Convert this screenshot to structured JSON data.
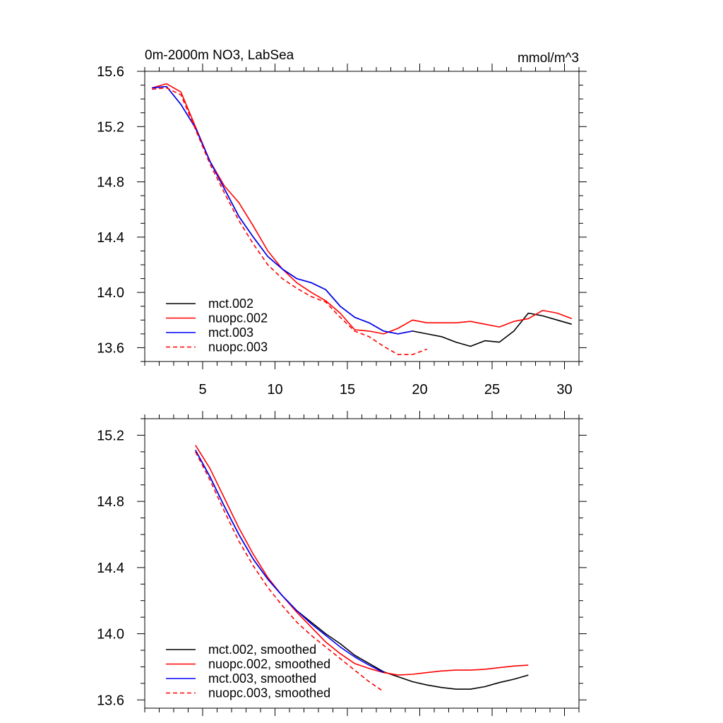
{
  "chart_data": [
    {
      "type": "line",
      "title": "0m-2000m NO3, LabSea",
      "units": "mmol/m^3",
      "xlim": [
        1,
        31
      ],
      "ylim": [
        13.5,
        15.6
      ],
      "xticks": [
        5,
        10,
        15,
        20,
        25,
        30
      ],
      "yticks": [
        13.6,
        14.0,
        14.4,
        14.8,
        15.2,
        15.6
      ],
      "legend_position": "bottom-left",
      "series": [
        {
          "name": "mct.002",
          "color": "#000000",
          "dash": "solid",
          "x": [
            1.5,
            2.5,
            3.5,
            4.5,
            5.5,
            6.5,
            7.5,
            8.5,
            9.5,
            10.5,
            11.5,
            12.5,
            13.5,
            14.5,
            15.5,
            16.5,
            17.5,
            18.5,
            19.5,
            20.5,
            21.5,
            22.5,
            23.5,
            24.5,
            25.5,
            26.5,
            27.5,
            28.5,
            29.5,
            30.5
          ],
          "y": [
            15.48,
            15.49,
            15.36,
            15.19,
            14.95,
            14.75,
            14.55,
            14.4,
            14.26,
            14.17,
            14.1,
            14.07,
            14.02,
            13.9,
            13.82,
            13.78,
            13.72,
            13.7,
            13.72,
            13.7,
            13.68,
            13.64,
            13.61,
            13.65,
            13.64,
            13.72,
            13.85,
            13.83,
            13.8,
            13.77
          ]
        },
        {
          "name": "nuopc.002",
          "color": "#ff0000",
          "dash": "solid",
          "x": [
            1.5,
            2.5,
            3.5,
            4.5,
            5.5,
            6.5,
            7.5,
            8.5,
            9.5,
            10.5,
            11.5,
            12.5,
            13.5,
            14.5,
            15.5,
            16.5,
            17.5,
            18.5,
            19.5,
            20.5,
            21.5,
            22.5,
            23.5,
            24.5,
            25.5,
            26.5,
            27.5,
            28.5,
            29.5,
            30.5
          ],
          "y": [
            15.48,
            15.51,
            15.45,
            15.2,
            14.95,
            14.77,
            14.65,
            14.48,
            14.3,
            14.17,
            14.07,
            14.0,
            13.94,
            13.85,
            13.73,
            13.72,
            13.7,
            13.74,
            13.8,
            13.78,
            13.78,
            13.78,
            13.79,
            13.77,
            13.75,
            13.79,
            13.81,
            13.87,
            13.85,
            13.81
          ]
        },
        {
          "name": "mct.003",
          "color": "#0000ff",
          "dash": "solid",
          "x": [
            1.5,
            2.5,
            3.5,
            4.5,
            5.5,
            6.5,
            7.5,
            8.5,
            9.5,
            10.5,
            11.5,
            12.5,
            13.5,
            14.5,
            15.5,
            16.5,
            17.5,
            18.5,
            19.5
          ],
          "y": [
            15.48,
            15.49,
            15.36,
            15.19,
            14.95,
            14.75,
            14.55,
            14.4,
            14.26,
            14.17,
            14.1,
            14.07,
            14.02,
            13.9,
            13.82,
            13.78,
            13.72,
            13.7,
            13.72
          ]
        },
        {
          "name": "nuopc.003",
          "color": "#ff0000",
          "dash": "dashed",
          "x": [
            1.5,
            2.5,
            3.5,
            4.5,
            5.5,
            6.5,
            7.5,
            8.5,
            9.5,
            10.5,
            11.5,
            12.5,
            13.5,
            14.5,
            15.5,
            16.5,
            17.5,
            18.5,
            19.5,
            20.5
          ],
          "y": [
            15.47,
            15.48,
            15.43,
            15.18,
            14.93,
            14.72,
            14.52,
            14.35,
            14.2,
            14.1,
            14.03,
            13.97,
            13.93,
            13.82,
            13.72,
            13.68,
            13.61,
            13.55,
            13.55,
            13.59
          ]
        }
      ]
    },
    {
      "type": "line",
      "xlim": [
        1,
        31
      ],
      "ylim": [
        13.55,
        15.3
      ],
      "xticks": [
        5,
        10,
        15,
        20,
        25,
        30
      ],
      "yticks": [
        13.6,
        14.0,
        14.4,
        14.8,
        15.2
      ],
      "legend_position": "bottom-left",
      "series": [
        {
          "name": "mct.002, smoothed",
          "color": "#000000",
          "dash": "solid",
          "x": [
            4.5,
            5.5,
            6.5,
            7.5,
            8.5,
            9.5,
            10.5,
            11.5,
            12.5,
            13.5,
            14.5,
            15.5,
            16.5,
            17.5,
            18.5,
            19.5,
            20.5,
            21.5,
            22.5,
            23.5,
            24.5,
            25.5,
            26.5,
            27.5
          ],
          "y": [
            15.11,
            14.95,
            14.77,
            14.6,
            14.45,
            14.33,
            14.23,
            14.14,
            14.07,
            14.0,
            13.94,
            13.87,
            13.82,
            13.77,
            13.74,
            13.71,
            13.69,
            13.675,
            13.665,
            13.665,
            13.68,
            13.705,
            13.725,
            13.75
          ]
        },
        {
          "name": "nuopc.002, smoothed",
          "color": "#ff0000",
          "dash": "solid",
          "x": [
            4.5,
            5.5,
            6.5,
            7.5,
            8.5,
            9.5,
            10.5,
            11.5,
            12.5,
            13.5,
            14.5,
            15.5,
            16.5,
            17.5,
            18.5,
            19.5,
            20.5,
            21.5,
            22.5,
            23.5,
            24.5,
            25.5,
            26.5,
            27.5
          ],
          "y": [
            15.14,
            15.0,
            14.82,
            14.64,
            14.48,
            14.34,
            14.23,
            14.13,
            14.04,
            13.95,
            13.88,
            13.82,
            13.79,
            13.765,
            13.75,
            13.755,
            13.765,
            13.775,
            13.78,
            13.78,
            13.785,
            13.795,
            13.805,
            13.81
          ]
        },
        {
          "name": "mct.003, smoothed",
          "color": "#0000ff",
          "dash": "solid",
          "x": [
            4.5,
            5.5,
            6.5,
            7.5,
            8.5,
            9.5,
            10.5,
            11.5,
            12.5,
            13.5,
            14.5,
            15.5,
            16.5,
            17.5
          ],
          "y": [
            15.11,
            14.95,
            14.77,
            14.6,
            14.45,
            14.33,
            14.23,
            14.14,
            14.06,
            13.99,
            13.92,
            13.86,
            13.81,
            13.765
          ]
        },
        {
          "name": "nuopc.003, smoothed",
          "color": "#ff0000",
          "dash": "dashed",
          "x": [
            4.5,
            5.5,
            6.5,
            7.5,
            8.5,
            9.5,
            10.5,
            11.5,
            12.5,
            13.5,
            14.5,
            15.5,
            16.5,
            17.5
          ],
          "y": [
            15.1,
            14.93,
            14.74,
            14.56,
            14.41,
            14.28,
            14.17,
            14.07,
            13.99,
            13.92,
            13.85,
            13.78,
            13.71,
            13.65
          ]
        }
      ]
    }
  ]
}
